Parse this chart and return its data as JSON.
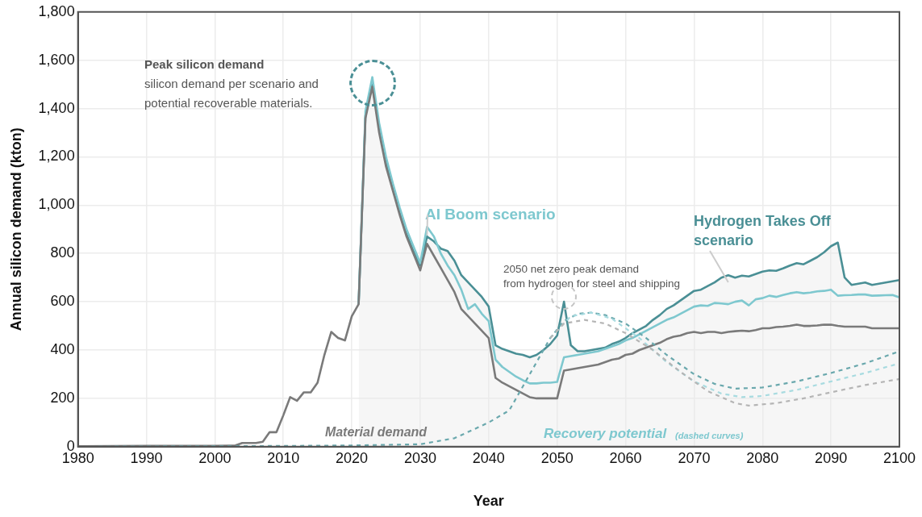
{
  "chart_data": {
    "type": "line",
    "xlabel": "Year",
    "ylabel": "Annual silicon demand (kton)",
    "xlim": [
      1980,
      2100
    ],
    "xticks": [
      1980,
      1990,
      2000,
      2010,
      2020,
      2030,
      2040,
      2050,
      2060,
      2070,
      2080,
      2090,
      2100
    ],
    "ylim": [
      0,
      1800
    ],
    "yticks": [
      0,
      200,
      400,
      600,
      800,
      {
        "value": 1000,
        "label": "1,000"
      },
      {
        "value": 1200,
        "label": "1,200"
      },
      {
        "value": 1400,
        "label": "1,400"
      },
      {
        "value": 1600,
        "label": "1,600"
      },
      {
        "value": 1800,
        "label": "1,800"
      }
    ],
    "grid": true,
    "legend": false,
    "marker": "none",
    "series": [
      {
        "name": "Hydrogen Takes Off scenario",
        "type": "area",
        "color": "#4a8f95",
        "x": [
          2021,
          2022,
          2023,
          2024,
          2025,
          2026,
          2027,
          2028,
          2029,
          2030,
          2031,
          2032,
          2033,
          2034,
          2035,
          2036,
          2037,
          2038,
          2039,
          2040,
          2041,
          2042,
          2043,
          2044,
          2045,
          2046,
          2047,
          2048,
          2049,
          2050,
          2051,
          2052,
          2053,
          2054,
          2055,
          2056,
          2057,
          2058,
          2059,
          2060,
          2061,
          2062,
          2063,
          2064,
          2065,
          2066,
          2067,
          2068,
          2069,
          2070,
          2071,
          2072,
          2073,
          2074,
          2075,
          2076,
          2077,
          2078,
          2079,
          2080,
          2081,
          2082,
          2083,
          2084,
          2085,
          2086,
          2087,
          2088,
          2089,
          2090,
          2091,
          2092,
          2093,
          2094,
          2095,
          2096,
          2097,
          2098,
          2099,
          2100
        ],
        "values": [
          590,
          1370,
          1500,
          1320,
          1180,
          1070,
          970,
          880,
          810,
          750,
          870,
          850,
          820,
          810,
          770,
          710,
          680,
          650,
          620,
          580,
          420,
          405,
          395,
          385,
          380,
          370,
          380,
          400,
          425,
          460,
          600,
          420,
          395,
          395,
          400,
          405,
          410,
          425,
          435,
          450,
          470,
          485,
          500,
          525,
          545,
          570,
          585,
          605,
          625,
          645,
          650,
          665,
          680,
          700,
          710,
          700,
          708,
          705,
          715,
          725,
          730,
          728,
          738,
          750,
          760,
          755,
          770,
          785,
          805,
          830,
          845,
          700,
          670,
          675,
          680,
          670,
          675,
          680,
          685,
          690
        ]
      },
      {
        "name": "AI Boom scenario",
        "color": "#7ec8cf",
        "x": [
          2021,
          2022,
          2023,
          2024,
          2025,
          2026,
          2027,
          2028,
          2029,
          2030,
          2031,
          2032,
          2033,
          2034,
          2035,
          2036,
          2037,
          2038,
          2039,
          2040,
          2041,
          2042,
          2043,
          2044,
          2045,
          2046,
          2047,
          2048,
          2049,
          2050,
          2051,
          2052,
          2053,
          2054,
          2055,
          2056,
          2057,
          2058,
          2059,
          2060,
          2061,
          2062,
          2063,
          2064,
          2065,
          2066,
          2067,
          2068,
          2069,
          2070,
          2071,
          2072,
          2073,
          2074,
          2075,
          2076,
          2077,
          2078,
          2079,
          2080,
          2081,
          2082,
          2083,
          2084,
          2085,
          2086,
          2087,
          2088,
          2089,
          2090,
          2091,
          2092,
          2093,
          2094,
          2095,
          2096,
          2097,
          2098,
          2099,
          2100
        ],
        "values": [
          590,
          1390,
          1530,
          1340,
          1200,
          1090,
          990,
          900,
          830,
          760,
          910,
          870,
          800,
          750,
          710,
          650,
          570,
          590,
          550,
          520,
          360,
          330,
          310,
          290,
          275,
          262,
          262,
          265,
          265,
          268,
          370,
          375,
          380,
          385,
          390,
          395,
          405,
          415,
          425,
          440,
          450,
          465,
          480,
          495,
          510,
          525,
          535,
          550,
          565,
          580,
          585,
          583,
          595,
          593,
          590,
          600,
          605,
          585,
          610,
          615,
          625,
          620,
          628,
          635,
          640,
          635,
          638,
          643,
          645,
          650,
          625,
          627,
          628,
          630,
          630,
          625,
          626,
          627,
          628,
          618
        ]
      },
      {
        "name": "Material demand",
        "color": "#7a7a7a",
        "x": [
          1980,
          1990,
          2000,
          2002,
          2003,
          2004,
          2005,
          2006,
          2007,
          2008,
          2009,
          2010,
          2011,
          2012,
          2013,
          2014,
          2015,
          2016,
          2017,
          2018,
          2019,
          2020,
          2021,
          2022,
          2023,
          2024,
          2025,
          2026,
          2027,
          2028,
          2029,
          2030,
          2031,
          2032,
          2033,
          2034,
          2035,
          2036,
          2037,
          2038,
          2039,
          2040,
          2041,
          2042,
          2043,
          2044,
          2045,
          2046,
          2047,
          2048,
          2049,
          2050,
          2051,
          2052,
          2053,
          2054,
          2055,
          2056,
          2057,
          2058,
          2059,
          2060,
          2061,
          2062,
          2063,
          2064,
          2065,
          2066,
          2067,
          2068,
          2069,
          2070,
          2071,
          2072,
          2073,
          2074,
          2075,
          2076,
          2077,
          2078,
          2079,
          2080,
          2081,
          2082,
          2083,
          2084,
          2085,
          2086,
          2087,
          2088,
          2089,
          2090,
          2091,
          2092,
          2093,
          2094,
          2095,
          2096,
          2097,
          2098,
          2099,
          2100
        ],
        "values": [
          2,
          3,
          3,
          4,
          5,
          15,
          15,
          15,
          20,
          60,
          60,
          130,
          205,
          190,
          225,
          225,
          265,
          380,
          475,
          450,
          440,
          540,
          590,
          1360,
          1490,
          1300,
          1160,
          1060,
          960,
          870,
          800,
          730,
          840,
          790,
          740,
          690,
          640,
          570,
          540,
          510,
          480,
          450,
          285,
          265,
          250,
          235,
          220,
          205,
          200,
          200,
          200,
          200,
          315,
          320,
          325,
          330,
          335,
          340,
          350,
          360,
          365,
          380,
          385,
          400,
          410,
          420,
          430,
          445,
          455,
          460,
          470,
          475,
          470,
          475,
          475,
          470,
          475,
          478,
          480,
          478,
          483,
          490,
          490,
          495,
          497,
          500,
          505,
          500,
          500,
          502,
          505,
          505,
          500,
          497,
          497,
          497,
          497,
          490,
          490,
          490,
          490,
          490
        ]
      },
      {
        "color": "#6aa8ad",
        "line_style": "dashed",
        "x": [
          1983,
          2000,
          2010,
          2020,
          2030,
          2035,
          2040,
          2043,
          2045,
          2047,
          2049,
          2051,
          2053,
          2055,
          2057,
          2060,
          2063,
          2066,
          2070,
          2073,
          2076,
          2080,
          2085,
          2090,
          2095,
          2100
        ],
        "values": [
          0,
          2,
          3,
          5,
          10,
          35,
          100,
          150,
          250,
          350,
          450,
          520,
          550,
          555,
          545,
          510,
          450,
          380,
          300,
          260,
          240,
          245,
          270,
          305,
          345,
          395
        ]
      },
      {
        "color": "#a8dbe0",
        "line_style": "dashed",
        "x": [
          2049,
          2052,
          2055,
          2058,
          2062,
          2066,
          2070,
          2074,
          2077,
          2080,
          2085,
          2090,
          2095,
          2100
        ],
        "values": [
          450,
          540,
          555,
          530,
          450,
          350,
          270,
          220,
          205,
          210,
          235,
          270,
          305,
          345
        ]
      },
      {
        "color": "#b5b5b5",
        "line_style": "dashed",
        "x": [
          2049,
          2051,
          2054,
          2057,
          2060,
          2064,
          2068,
          2072,
          2076,
          2078,
          2082,
          2086,
          2090,
          2095,
          2100
        ],
        "values": [
          450,
          510,
          525,
          510,
          470,
          400,
          310,
          230,
          180,
          170,
          180,
          200,
          225,
          255,
          280
        ]
      }
    ],
    "annotations": [
      "Peak silicon demand",
      "silicon demand per scenario and\npotential recoverable materials.",
      {
        "text": "2050 net zero peak demand\nfrom hydrogen for steel and shipping",
        "x": 2051,
        "y": 600
      },
      "Recovery potential",
      "(dashed curves)"
    ]
  }
}
